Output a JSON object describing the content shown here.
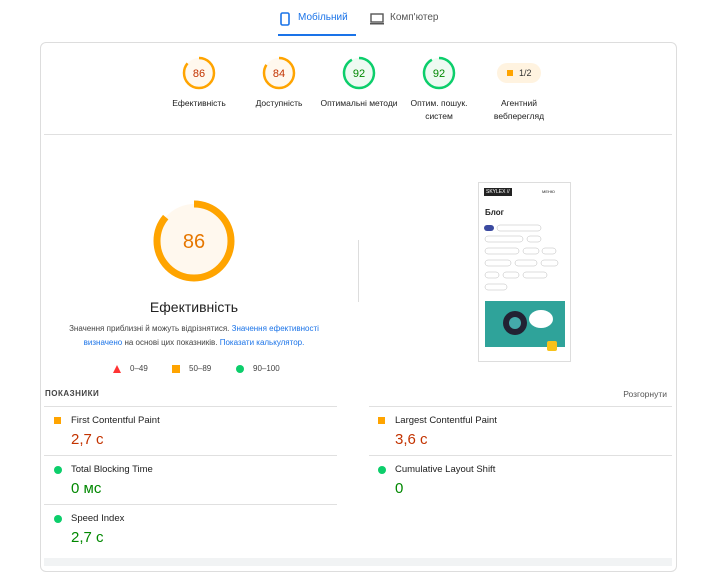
{
  "tabs": [
    "Мобільний",
    "Комп'ютер"
  ],
  "categories": [
    {
      "score": 86,
      "label": "Ефективність",
      "color": "#ffa400",
      "text_color": "#c33300",
      "tint": "#fff8ee"
    },
    {
      "score": 84,
      "label": "Доступність",
      "color": "#ffa400",
      "text_color": "#c33300",
      "tint": "#fff8ee"
    },
    {
      "score": 92,
      "label": "Оптимальні методи",
      "color": "#0cce6b",
      "text_color": "#008800",
      "tint": "#eefaf2"
    },
    {
      "score": 92,
      "label": "Оптим. пошук. систем",
      "color": "#0cce6b",
      "text_color": "#008800",
      "tint": "#eefaf2"
    }
  ],
  "agent": {
    "score": "1/2",
    "label": "Агентний вебперегляд"
  },
  "main": {
    "score": 86,
    "color": "#ffa400",
    "text_color": "#e67700",
    "tint": "#fff8ee",
    "title": "Ефективність",
    "note": [
      "Значення приблизні й можуть відрізнятися.",
      "Значення ефективності визначено",
      "на основі цих показників.",
      "Показати калькулятор."
    ],
    "legend": [
      "0–49",
      "50–89",
      "90–100"
    ]
  },
  "preview": {
    "logo": "SKYLEX //",
    "menu": "МЕНЮ",
    "heading": "Блог"
  },
  "metrics": {
    "title": "ПОКАЗНИКИ",
    "expand": "Розгорнути",
    "items": [
      {
        "name": "First Contentful Paint",
        "value": "2,7 с",
        "status": "average"
      },
      {
        "name": "Largest Contentful Paint",
        "value": "3,6 с",
        "status": "average"
      },
      {
        "name": "Total Blocking Time",
        "value": "0 мс",
        "status": "pass"
      },
      {
        "name": "Cumulative Layout Shift",
        "value": "0",
        "status": "pass"
      },
      {
        "name": "Speed Index",
        "value": "2,7 с",
        "status": "pass"
      }
    ]
  }
}
